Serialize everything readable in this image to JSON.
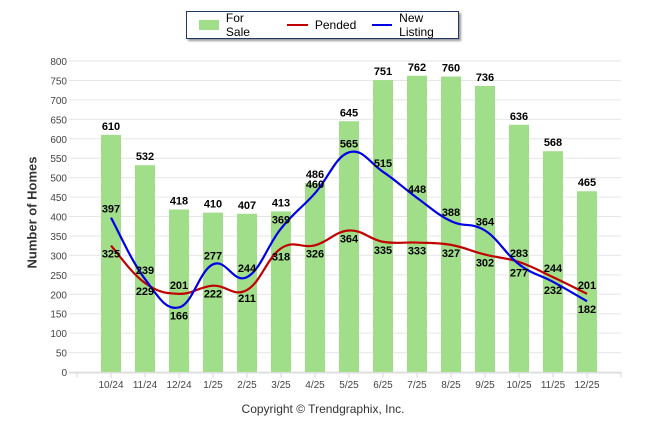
{
  "chart_data": {
    "type": "bar",
    "title": "",
    "xlabel": "",
    "ylabel": "Number of Homes",
    "ylim": [
      0,
      800
    ],
    "yticks": [
      0,
      50,
      100,
      150,
      200,
      250,
      300,
      350,
      400,
      450,
      500,
      550,
      600,
      650,
      700,
      750,
      800
    ],
    "grid": true,
    "legend_position": "top-center",
    "categories": [
      "10/24",
      "11/24",
      "12/24",
      "1/25",
      "2/25",
      "3/25",
      "4/25",
      "5/25",
      "6/25",
      "7/25",
      "8/25",
      "9/25",
      "10/25",
      "11/25",
      "12/25"
    ],
    "series": [
      {
        "name": "For Sale",
        "kind": "bar",
        "color": "#a1de8a",
        "values": [
          610,
          532,
          418,
          410,
          407,
          413,
          486,
          645,
          751,
          762,
          760,
          736,
          636,
          568,
          465
        ]
      },
      {
        "name": "Pended",
        "kind": "line",
        "color": "#c00000",
        "values": [
          325,
          229,
          201,
          222,
          211,
          318,
          326,
          364,
          335,
          333,
          327,
          302,
          283,
          244,
          201
        ]
      },
      {
        "name": "New Listing",
        "kind": "line",
        "color": "#0000e6",
        "values": [
          397,
          239,
          166,
          277,
          244,
          369,
          460,
          565,
          515,
          448,
          388,
          364,
          277,
          232,
          182
        ]
      }
    ]
  },
  "legend": {
    "items": [
      {
        "label": "For Sale",
        "color": "#a1de8a"
      },
      {
        "label": "Pended",
        "color": "#c00000"
      },
      {
        "label": "New Listing",
        "color": "#0000e6"
      }
    ]
  },
  "footer": {
    "copyright": "Copyright © Trendgraphix, Inc."
  }
}
